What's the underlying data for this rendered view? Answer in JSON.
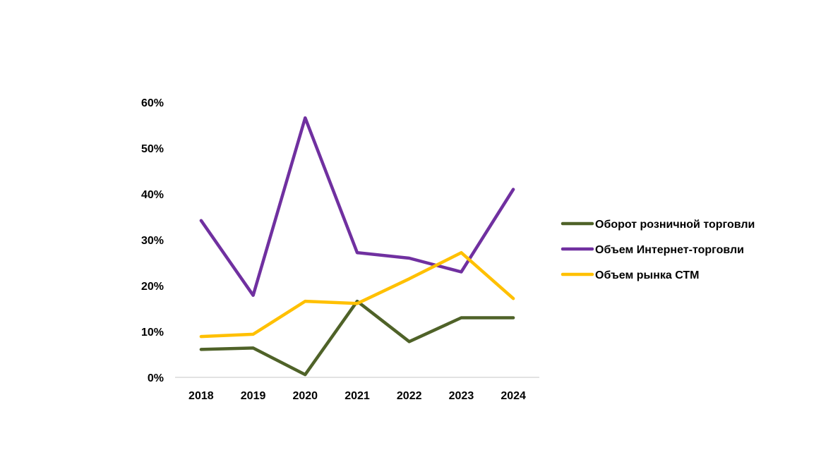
{
  "chart_data": {
    "type": "line",
    "title": "",
    "xlabel": "",
    "ylabel": "",
    "categories": [
      "2018",
      "2019",
      "2020",
      "2021",
      "2022",
      "2023",
      "2024"
    ],
    "y_ticks": [
      "0%",
      "10%",
      "20%",
      "30%",
      "40%",
      "50%",
      "60%"
    ],
    "ylim": [
      0,
      60
    ],
    "grid": false,
    "legend_position": "right",
    "series": [
      {
        "name": "Оборот розничной торговли",
        "color": "#4f6228",
        "values": [
          6.1,
          6.4,
          0.6,
          16.6,
          7.8,
          13.0,
          13.0
        ]
      },
      {
        "name": "Объем Интернет-торговли",
        "color": "#7030a0",
        "values": [
          34.2,
          17.9,
          56.6,
          27.2,
          26.0,
          23.0,
          41.0
        ]
      },
      {
        "name": "Объем рынка СТМ",
        "color": "#ffc000",
        "values": [
          8.9,
          9.4,
          16.6,
          16.1,
          21.5,
          27.2,
          17.2
        ]
      }
    ]
  }
}
